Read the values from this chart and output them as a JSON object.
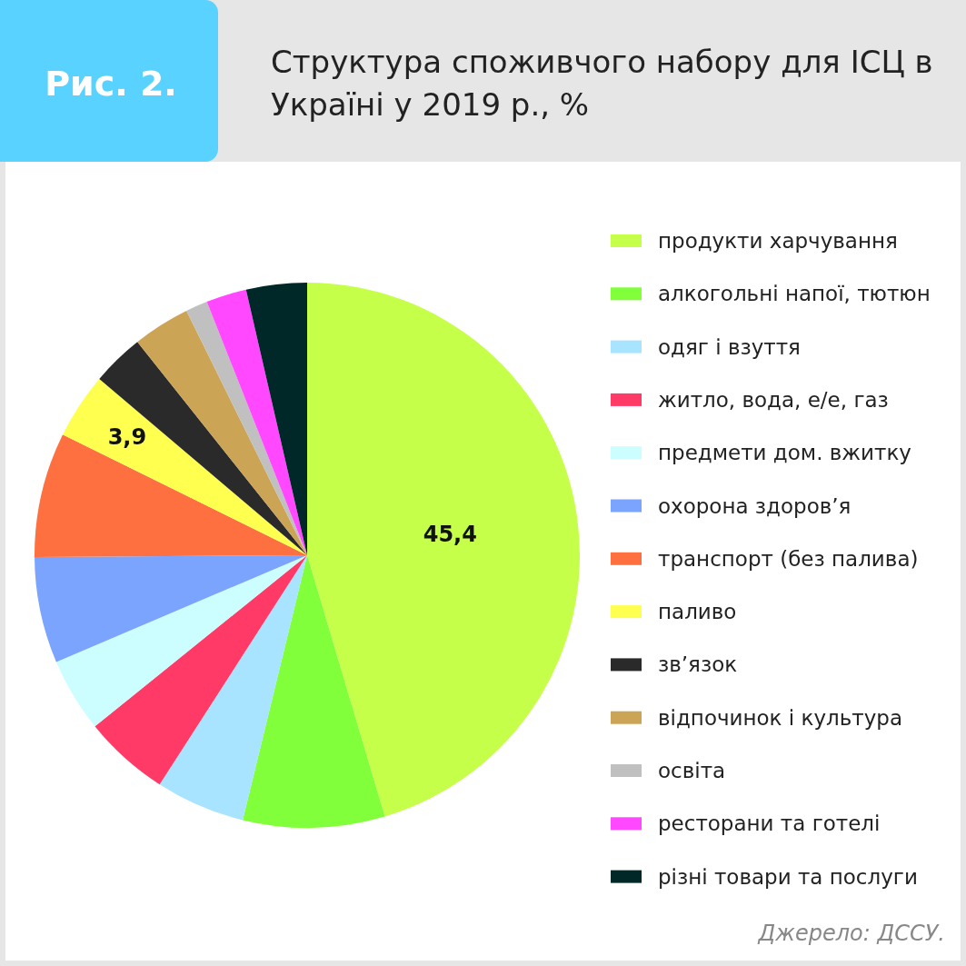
{
  "chart_data": {
    "type": "pie",
    "title": "Структура споживчого набору для ІСЦ в Україні у 2019 р., %",
    "annotations": [
      "Рис. 2.",
      "Джерело: ДССУ."
    ],
    "categories": [
      "продукти харчування",
      "алкогольні напої, тютюн",
      "одяг і взуття",
      "житло, вода, е/е, газ",
      "предмети дом. вжитку",
      "охорона здоров’я",
      "транспорт (без палива)",
      "паливо",
      "зв’язок",
      "відпочинок і культура",
      "освіта",
      "ресторани та готелі",
      "різні товари та послуги"
    ],
    "values": [
      45.4,
      8.4,
      5.3,
      5.1,
      4.4,
      6.3,
      7.4,
      3.9,
      3.1,
      3.4,
      1.3,
      2.4,
      3.6
    ],
    "value_labels": [
      "45,4",
      null,
      null,
      null,
      null,
      null,
      null,
      "3,9",
      null,
      null,
      null,
      null,
      null
    ],
    "colors": [
      "#c6ff4a",
      "#80ff3a",
      "#a8e4ff",
      "#ff3a66",
      "#ccfdff",
      "#7ba4ff",
      "#ff7040",
      "#ffff50",
      "#2a2a2a",
      "#cca456",
      "#c0c0c0",
      "#ff48ff",
      "#002828"
    ],
    "legend": "right"
  }
}
